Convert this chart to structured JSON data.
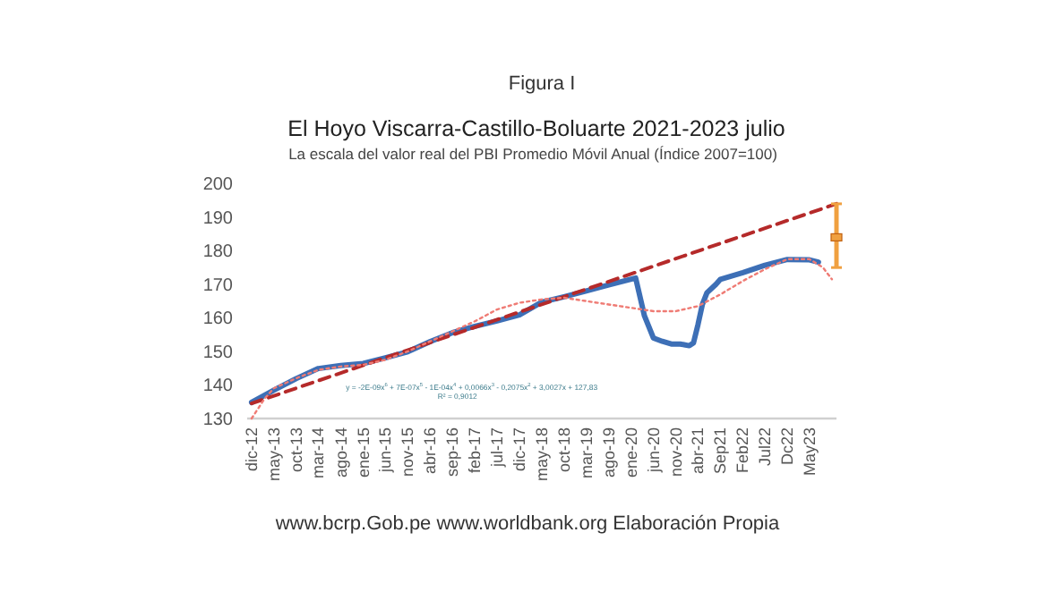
{
  "chart_data": {
    "type": "line",
    "title": "Figura I",
    "subtitle": "El Hoyo Viscarra-Castillo-Boluarte  2021-2023 julio",
    "ylabel": "La escala del valor real del PBI Promedio Móvil Anual (Índice 2007=100)",
    "annotations": [
      "y = -2E-09x$^{6}$ + 7E-07x$^{5}$ - 1E-04x$^{4}$ + 0,0066x$^{3}$ - 0,2075x$^{2}$ + 3,0027x + 127,83",
      "R² = 0,9012",
      "www.bcrp.Gob.pe www.worldbank.org  Elaboración Propia"
    ],
    "xlim": [
      "2012-11",
      "2023-11"
    ],
    "xticks": [
      {
        "value": "2012-12",
        "label": "dic-12"
      },
      {
        "value": "2013-05",
        "label": "may-13"
      },
      {
        "value": "2013-10",
        "label": "oct-13"
      },
      {
        "value": "2014-03",
        "label": "mar-14"
      },
      {
        "value": "2014-08",
        "label": "ago-14"
      },
      {
        "value": "2015-01",
        "label": "ene-15"
      },
      {
        "value": "2015-06",
        "label": "jun-15"
      },
      {
        "value": "2015-11",
        "label": "nov-15"
      },
      {
        "value": "2016-04",
        "label": "abr-16"
      },
      {
        "value": "2016-09",
        "label": "sep-16"
      },
      {
        "value": "2017-02",
        "label": "feb-17"
      },
      {
        "value": "2017-07",
        "label": "jul-17"
      },
      {
        "value": "2017-12",
        "label": "dic-17"
      },
      {
        "value": "2018-05",
        "label": "may-18"
      },
      {
        "value": "2018-10",
        "label": "oct-18"
      },
      {
        "value": "2019-03",
        "label": "mar-19"
      },
      {
        "value": "2019-08",
        "label": "ago-19"
      },
      {
        "value": "2020-01",
        "label": "ene-20"
      },
      {
        "value": "2020-06",
        "label": "jun-20"
      },
      {
        "value": "2020-11",
        "label": "nov-20"
      },
      {
        "value": "2021-04",
        "label": "abr-21"
      },
      {
        "value": "2021-09",
        "label": "Sep21"
      },
      {
        "value": "2022-02",
        "label": "Feb22"
      },
      {
        "value": "2022-07",
        "label": "Jul22"
      },
      {
        "value": "2022-12",
        "label": "Dc22"
      },
      {
        "value": "2023-05",
        "label": "May23"
      }
    ],
    "ylim": [
      130,
      200
    ],
    "yticks": [
      130,
      140,
      150,
      160,
      170,
      180,
      190,
      200
    ],
    "grid": false,
    "series": [
      {
        "color": "#3d6fb6",
        "line_style": "solid",
        "x": [
          "2012-12",
          "2013-05",
          "2013-10",
          "2014-03",
          "2014-08",
          "2015-01",
          "2015-06",
          "2015-11",
          "2016-04",
          "2016-09",
          "2017-02",
          "2017-07",
          "2017-12",
          "2018-05",
          "2018-10",
          "2019-03",
          "2019-08",
          "2020-02",
          "2020-04",
          "2020-06",
          "2020-08",
          "2020-10",
          "2020-12",
          "2021-02",
          "2021-03",
          "2021-04",
          "2021-05",
          "2021-06",
          "2021-08",
          "2021-09",
          "2022-02",
          "2022-07",
          "2022-12",
          "2023-05",
          "2023-07"
        ],
        "values": [
          134.8,
          138.4,
          141.9,
          144.9,
          145.8,
          146.4,
          148.1,
          149.9,
          152.9,
          155.6,
          157.5,
          159.1,
          160.9,
          164.7,
          166.3,
          168,
          169.8,
          171.9,
          160.6,
          154,
          153,
          152.2,
          152.2,
          151.7,
          152.5,
          158,
          164,
          167.5,
          170,
          171.5,
          173.5,
          175.7,
          177.4,
          177.3,
          176.6
        ]
      },
      {
        "color": "#b52a2a",
        "line_style": "dashed",
        "x": [
          "2012-12",
          "2023-11"
        ],
        "values": [
          134.5,
          194
        ]
      },
      {
        "color": "#ef7b74",
        "line_style": "dotted",
        "x": [
          "2012-12",
          "2013-03",
          "2013-05",
          "2013-10",
          "2014-03",
          "2014-08",
          "2015-01",
          "2015-06",
          "2015-11",
          "2016-04",
          "2016-09",
          "2017-02",
          "2017-07",
          "2017-12",
          "2018-05",
          "2018-10",
          "2019-03",
          "2019-08",
          "2020-01",
          "2020-06",
          "2020-11",
          "2021-04",
          "2021-09",
          "2022-02",
          "2022-07",
          "2022-12",
          "2023-05",
          "2023-08",
          "2023-10"
        ],
        "values": [
          130,
          136,
          139,
          142,
          144.5,
          145.5,
          146,
          147.5,
          150,
          153,
          156,
          159,
          162.5,
          164.5,
          165.5,
          166,
          165,
          164,
          163,
          162,
          162,
          163.5,
          167,
          171,
          174.5,
          177.5,
          177.5,
          175,
          171.5
        ]
      },
      {
        "type": "scatter",
        "color": "#f0a040",
        "marker": "square",
        "x": [
          "2023-11"
        ],
        "values": [
          184
        ],
        "errors": [
          [
            175,
            194
          ]
        ]
      }
    ]
  }
}
